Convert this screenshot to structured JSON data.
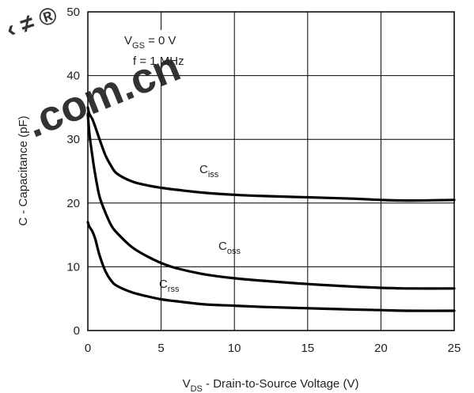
{
  "chart_data": {
    "type": "line",
    "xlabel": {
      "main": "V",
      "sub": "DS",
      "rest": " - Drain-to-Source Voltage (V)"
    },
    "ylabel": "C - Capacitance (pF)",
    "xlim": [
      0,
      25
    ],
    "ylim": [
      0,
      50
    ],
    "xticks": [
      "0",
      "5",
      "10",
      "15",
      "20",
      "25"
    ],
    "yticks": [
      "0",
      "10",
      "20",
      "30",
      "40",
      "50"
    ],
    "grid": true,
    "annotation": {
      "line1": {
        "main": "V",
        "sub": "GS",
        "rest": " = 0 V"
      },
      "line2": "f = 1 MHz"
    },
    "series": [
      {
        "name": {
          "main": "C",
          "sub": "iss"
        },
        "x": [
          0,
          0.1,
          0.3,
          0.5,
          0.8,
          1.2,
          1.6,
          2,
          3,
          4,
          5,
          6,
          8,
          10,
          12,
          15,
          18,
          20,
          22,
          25
        ],
        "y": [
          35,
          34,
          33.2,
          32,
          30,
          27.5,
          25.8,
          24.6,
          23.4,
          22.8,
          22.4,
          22.1,
          21.6,
          21.3,
          21.1,
          20.9,
          20.7,
          20.5,
          20.4,
          20.5
        ]
      },
      {
        "name": {
          "main": "C",
          "sub": "oss"
        },
        "x": [
          0,
          0.1,
          0.3,
          0.5,
          0.8,
          1.2,
          1.6,
          2,
          3,
          4,
          5,
          6,
          8,
          10,
          12,
          15,
          18,
          20,
          22,
          25
        ],
        "y": [
          34,
          31,
          27.5,
          24.5,
          21,
          18.5,
          16.5,
          15.3,
          13.1,
          11.7,
          10.6,
          9.8,
          8.8,
          8.2,
          7.8,
          7.3,
          6.9,
          6.7,
          6.6,
          6.6
        ]
      },
      {
        "name": {
          "main": "C",
          "sub": "rss"
        },
        "x": [
          0,
          0.1,
          0.3,
          0.5,
          0.8,
          1.2,
          1.6,
          2,
          3,
          4,
          5,
          6,
          8,
          10,
          12,
          15,
          18,
          20,
          22,
          25
        ],
        "y": [
          17,
          16.3,
          15.6,
          14.4,
          11.8,
          9.3,
          7.8,
          7.0,
          6.0,
          5.4,
          4.9,
          4.6,
          4.1,
          3.9,
          3.7,
          3.5,
          3.3,
          3.2,
          3.1,
          3.1
        ]
      }
    ]
  },
  "watermark": {
    "text": ".com.cn",
    "symbol": "‹ ≠ ®",
    "color": "#e0001b"
  }
}
